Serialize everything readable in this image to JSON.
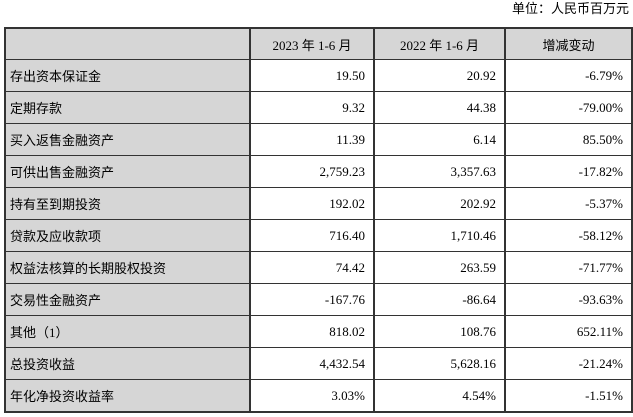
{
  "page": {
    "unit_label": "单位：人民币百万元"
  },
  "colors": {
    "header_fill": "#d6d6d6",
    "border": "#333333",
    "text": "#000000"
  },
  "table": {
    "columns": [
      "",
      "2023 年 1-6 月",
      "2022 年 1-6 月",
      "增减变动"
    ],
    "rows": [
      {
        "label": "存出资本保证金",
        "v2023": "19.50",
        "v2022": "20.92",
        "change": "-6.79%"
      },
      {
        "label": "定期存款",
        "v2023": "9.32",
        "v2022": "44.38",
        "change": "-79.00%"
      },
      {
        "label": "买入返售金融资产",
        "v2023": "11.39",
        "v2022": "6.14",
        "change": "85.50%"
      },
      {
        "label": "可供出售金融资产",
        "v2023": "2,759.23",
        "v2022": "3,357.63",
        "change": "-17.82%"
      },
      {
        "label": "持有至到期投资",
        "v2023": "192.02",
        "v2022": "202.92",
        "change": "-5.37%"
      },
      {
        "label": "贷款及应收款项",
        "v2023": "716.40",
        "v2022": "1,710.46",
        "change": "-58.12%"
      },
      {
        "label": "权益法核算的长期股权投资",
        "v2023": "74.42",
        "v2022": "263.59",
        "change": "-71.77%"
      },
      {
        "label": "交易性金融资产",
        "v2023": "-167.76",
        "v2022": "-86.64",
        "change": "-93.63%"
      },
      {
        "label": "其他（1）",
        "v2023": "818.02",
        "v2022": "108.76",
        "change": "652.11%"
      },
      {
        "label": "总投资收益",
        "v2023": "4,432.54",
        "v2022": "5,628.16",
        "change": "-21.24%"
      },
      {
        "label": "年化净投资收益率",
        "v2023": "3.03%",
        "v2022": "4.54%",
        "change": "-1.51%"
      }
    ]
  }
}
